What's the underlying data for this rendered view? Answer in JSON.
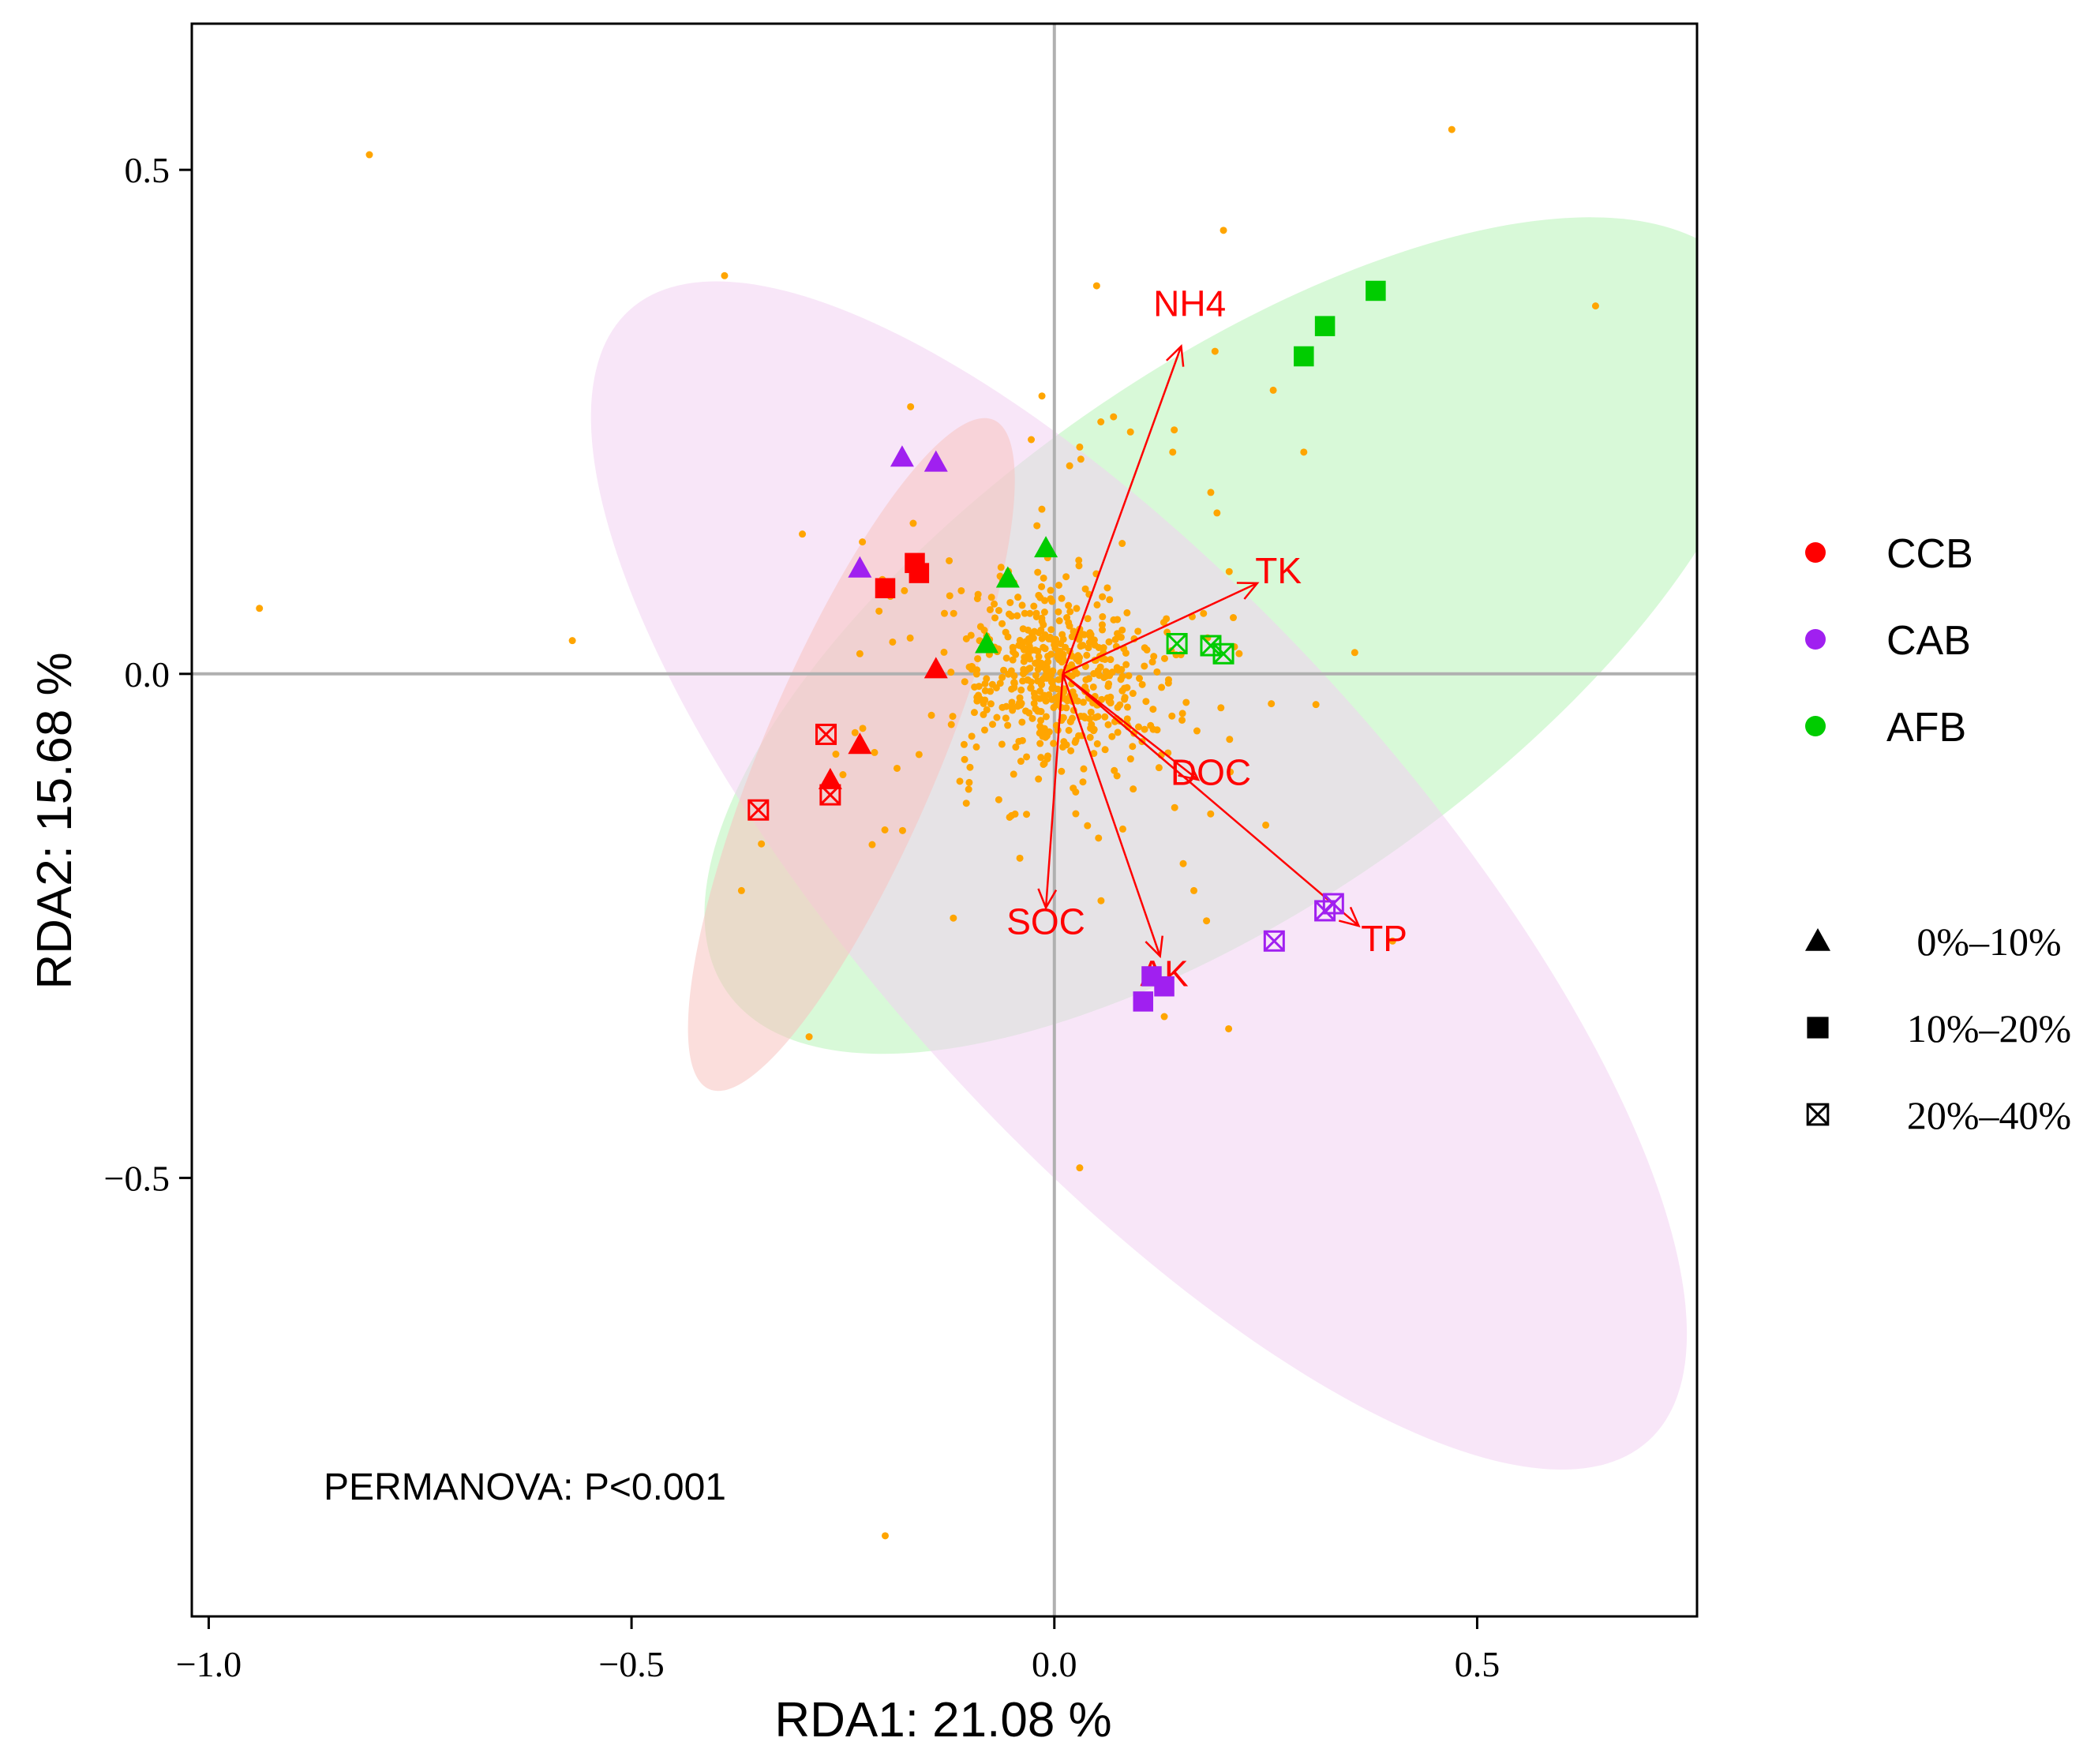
{
  "chart_data": {
    "type": "scatter",
    "xlabel": "RDA1: 21.08 %",
    "ylabel": "RDA2: 15.68 %",
    "xlim": [
      -1.02,
      0.76
    ],
    "ylim": [
      -0.935,
      0.645
    ],
    "xticks": [
      -1.0,
      -0.5,
      0.0,
      0.5
    ],
    "xtick_labels": [
      "−1.0",
      "−0.5",
      "0.0",
      "0.5"
    ],
    "yticks": [
      0.5,
      0.0,
      -0.5
    ],
    "ytick_labels": [
      "0.5",
      "0.0",
      "−0.5"
    ],
    "grid": false,
    "reference_lines": [
      0,
      0
    ],
    "annotation": "PERMANOVA: P<0.001",
    "colors": {
      "CCB": "#ff0000",
      "CAB": "#a020f0",
      "AFB": "#00cc00",
      "species": "#ffa500",
      "arrow": "#ff0000"
    },
    "legend_groups": [
      {
        "label": "CCB",
        "color": "#ff0000"
      },
      {
        "label": "CAB",
        "color": "#a020f0"
      },
      {
        "label": "AFB",
        "color": "#00cc00"
      }
    ],
    "legend_shapes": [
      {
        "label": "0%–10%",
        "shape": "triangle"
      },
      {
        "label": "10%–20%",
        "shape": "square"
      },
      {
        "label": "20%–40%",
        "shape": "boxx"
      }
    ],
    "legend_placement": "right",
    "ellipses": [
      {
        "group": "AFB",
        "cx": 0.215,
        "cy": 0.038,
        "rx": 0.735,
        "ry": 0.265,
        "angle_deg": 35,
        "fill": "#c8f7c8",
        "opacity": 0.7
      },
      {
        "group": "CAB",
        "cx": 0.1,
        "cy": -0.2,
        "rx": 0.9,
        "ry": 0.27,
        "angle_deg": -48,
        "fill": "#f3d2f3",
        "opacity": 0.55
      },
      {
        "group": "CCB",
        "cx": -0.24,
        "cy": -0.08,
        "rx": 0.43,
        "ry": 0.087,
        "angle_deg": 67,
        "fill": "#f8c2c0",
        "opacity": 0.55
      }
    ],
    "arrows": [
      {
        "label": "NH4",
        "x": 0.15,
        "y": 0.325,
        "lx": 0.16,
        "ly": 0.355
      },
      {
        "label": "TK",
        "x": 0.24,
        "y": 0.09,
        "lx": 0.265,
        "ly": 0.09
      },
      {
        "label": "DOC",
        "x": 0.17,
        "y": -0.105,
        "lx": 0.185,
        "ly": -0.11
      },
      {
        "label": "TP",
        "x": 0.36,
        "y": -0.25,
        "lx": 0.39,
        "ly": -0.275
      },
      {
        "label": "AK",
        "x": 0.125,
        "y": -0.28,
        "lx": 0.13,
        "ly": -0.31
      },
      {
        "label": "SOC",
        "x": -0.01,
        "y": -0.232,
        "lx": -0.01,
        "ly": -0.258
      }
    ],
    "samples": [
      {
        "group": "CCB",
        "shape": "square",
        "x": -0.2,
        "y": 0.085
      },
      {
        "group": "CCB",
        "shape": "square",
        "x": -0.165,
        "y": 0.11
      },
      {
        "group": "CCB",
        "shape": "square",
        "x": -0.16,
        "y": 0.1
      },
      {
        "group": "CCB",
        "shape": "triangle",
        "x": -0.14,
        "y": 0.005
      },
      {
        "group": "CCB",
        "shape": "triangle",
        "x": -0.23,
        "y": -0.07
      },
      {
        "group": "CCB",
        "shape": "triangle",
        "x": -0.265,
        "y": -0.105
      },
      {
        "group": "CCB",
        "shape": "boxx",
        "x": -0.27,
        "y": -0.06
      },
      {
        "group": "CCB",
        "shape": "boxx",
        "x": -0.265,
        "y": -0.12
      },
      {
        "group": "CCB",
        "shape": "boxx",
        "x": -0.35,
        "y": -0.135
      },
      {
        "group": "CAB",
        "shape": "triangle",
        "x": -0.18,
        "y": 0.215
      },
      {
        "group": "CAB",
        "shape": "triangle",
        "x": -0.14,
        "y": 0.21
      },
      {
        "group": "CAB",
        "shape": "triangle",
        "x": -0.23,
        "y": 0.105
      },
      {
        "group": "CAB",
        "shape": "square",
        "x": 0.115,
        "y": -0.3
      },
      {
        "group": "CAB",
        "shape": "square",
        "x": 0.13,
        "y": -0.31
      },
      {
        "group": "CAB",
        "shape": "square",
        "x": 0.105,
        "y": -0.325
      },
      {
        "group": "CAB",
        "shape": "boxx",
        "x": 0.26,
        "y": -0.265
      },
      {
        "group": "CAB",
        "shape": "boxx",
        "x": 0.32,
        "y": -0.235
      },
      {
        "group": "CAB",
        "shape": "boxx",
        "x": 0.33,
        "y": -0.228
      },
      {
        "group": "AFB",
        "shape": "triangle",
        "x": -0.01,
        "y": 0.125
      },
      {
        "group": "AFB",
        "shape": "triangle",
        "x": -0.055,
        "y": 0.095
      },
      {
        "group": "AFB",
        "shape": "triangle",
        "x": -0.08,
        "y": 0.03
      },
      {
        "group": "AFB",
        "shape": "square",
        "x": 0.38,
        "y": 0.38
      },
      {
        "group": "AFB",
        "shape": "square",
        "x": 0.32,
        "y": 0.345
      },
      {
        "group": "AFB",
        "shape": "square",
        "x": 0.295,
        "y": 0.315
      },
      {
        "group": "AFB",
        "shape": "boxx",
        "x": 0.145,
        "y": 0.03
      },
      {
        "group": "AFB",
        "shape": "boxx",
        "x": 0.185,
        "y": 0.028
      },
      {
        "group": "AFB",
        "shape": "boxx",
        "x": 0.2,
        "y": 0.02
      }
    ],
    "species_points": [
      [
        -0.81,
        0.515
      ],
      [
        -0.39,
        0.395
      ],
      [
        -0.94,
        0.065
      ],
      [
        -0.57,
        0.033
      ],
      [
        0.47,
        0.54
      ],
      [
        0.64,
        0.365
      ],
      [
        0.2,
        0.44
      ],
      [
        0.05,
        0.385
      ],
      [
        0.19,
        0.32
      ],
      [
        -0.2,
        -0.855
      ],
      [
        -0.29,
        -0.36
      ],
      [
        0.03,
        -0.49
      ],
      [
        0.13,
        -0.34
      ],
      [
        -0.37,
        -0.215
      ],
      [
        0.4,
        -0.265
      ],
      [
        -0.17,
        0.265
      ],
      [
        0.07,
        0.255
      ],
      [
        0.295,
        0.22
      ],
      [
        0.185,
        0.18
      ],
      [
        -0.25,
        -0.1
      ],
      [
        -0.13,
        0.06
      ],
      [
        0.25,
        -0.15
      ],
      [
        0.165,
        -0.215
      ],
      [
        0.18,
        -0.245
      ],
      [
        -0.16,
        -0.08
      ],
      [
        -0.23,
        0.02
      ],
      [
        0.09,
        0.24
      ],
      [
        0.055,
        0.25
      ],
      [
        0.03,
        0.225
      ],
      [
        0.14,
        0.22
      ]
    ],
    "species_cloud": {
      "count": 460,
      "center": [
        0.0,
        0.0
      ],
      "sd": [
        0.055,
        0.045
      ],
      "outer_count": 110,
      "outer_sd": [
        0.14,
        0.11
      ]
    }
  }
}
